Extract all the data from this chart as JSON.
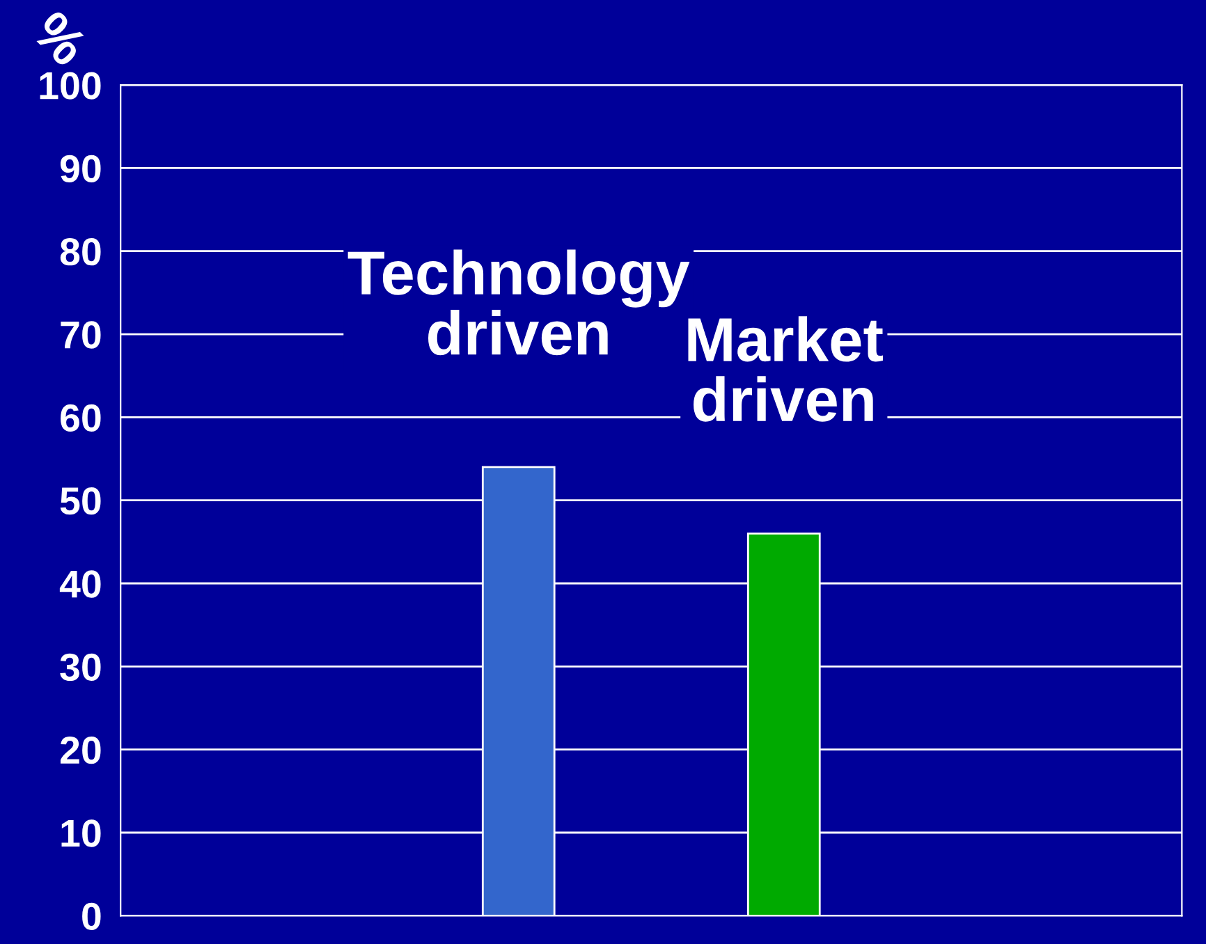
{
  "chart_data": {
    "type": "bar",
    "ylabel": "%",
    "categories": [
      null,
      "Technology driven",
      "Market driven",
      null
    ],
    "values": [
      null,
      54,
      46,
      null
    ],
    "colors": [
      "#3366cc",
      "#3366cc",
      "#00aa00",
      "#00aa00"
    ],
    "ylim": [
      0,
      100
    ],
    "yticks": [
      0,
      10,
      20,
      30,
      40,
      50,
      60,
      70,
      80,
      90,
      100
    ],
    "grid": "y",
    "legend": false
  }
}
